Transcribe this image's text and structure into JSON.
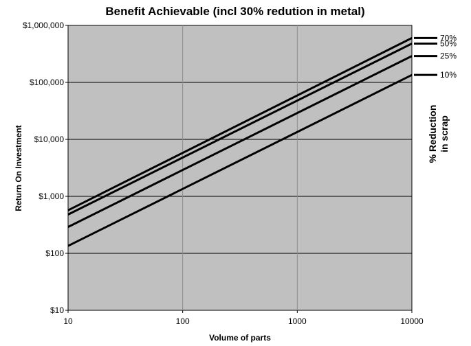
{
  "chart_data": {
    "type": "line",
    "title": "Benefit Achievable (incl 30% redution in metal)",
    "xlabel": "Volume of parts",
    "ylabel": "Return On Investment",
    "x_scale": "log",
    "y_scale": "log",
    "xlim": [
      10,
      10000
    ],
    "ylim": [
      10,
      1000000
    ],
    "x_ticks": [
      "10",
      "100",
      "1000",
      "10000"
    ],
    "y_ticks": [
      "$10",
      "$100",
      "$1,000",
      "$10,000",
      "$100,000",
      "$1,000,000"
    ],
    "grid": true,
    "plot_background": "#c0c0c0",
    "line_color": "#000000",
    "legend_title": "% Reduction in scrap",
    "legend_title_lines": [
      "% Reduction",
      "in scrap"
    ],
    "legend_position": "right",
    "x": [
      10,
      10000
    ],
    "series": [
      {
        "name": "70%",
        "values": [
          570,
          600000
        ]
      },
      {
        "name": "50%",
        "values": [
          480,
          480000
        ]
      },
      {
        "name": "25%",
        "values": [
          290,
          290000
        ]
      },
      {
        "name": "10%",
        "values": [
          135,
          135000
        ]
      }
    ]
  }
}
